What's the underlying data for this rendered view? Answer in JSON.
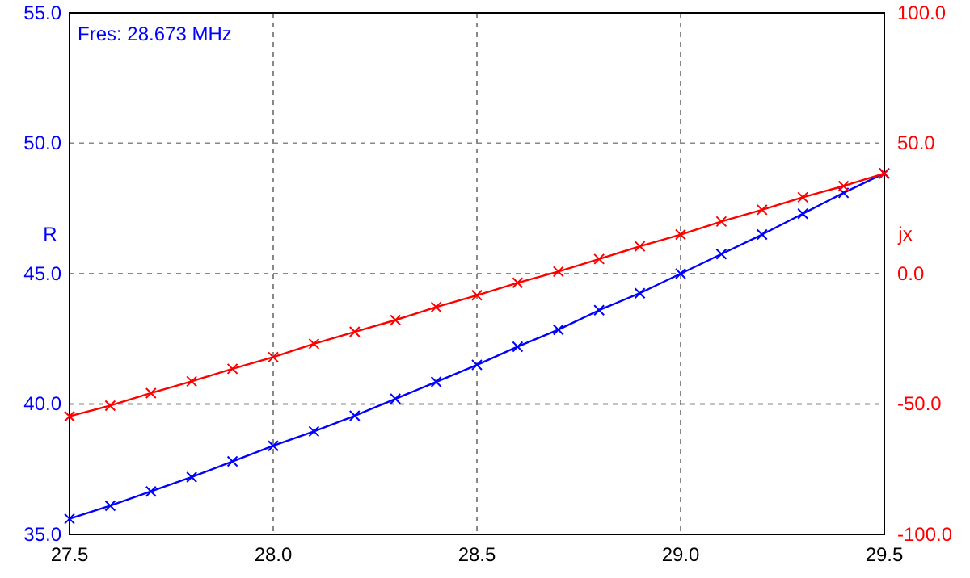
{
  "chart_data": {
    "type": "line",
    "ylabel": "R",
    "y2label": "jx",
    "annotations": [
      "Fres: 28.673 MHz"
    ],
    "x": [
      27.5,
      27.6,
      27.7,
      27.8,
      27.9,
      28.0,
      28.1,
      28.2,
      28.3,
      28.4,
      28.5,
      28.6,
      28.7,
      28.8,
      28.9,
      29.0,
      29.1,
      29.2,
      29.3,
      29.4,
      29.5
    ],
    "series": [
      {
        "color": "#0000ff",
        "values": [
          35.6,
          36.1,
          36.65,
          37.2,
          37.8,
          38.4,
          38.95,
          39.55,
          40.2,
          40.85,
          41.5,
          42.2,
          42.85,
          43.6,
          44.25,
          45.0,
          45.75,
          46.5,
          47.3,
          48.1,
          48.85
        ]
      },
      {
        "color": "#ff0000",
        "axis": "y2",
        "values": [
          -54.7,
          -50.6,
          -45.8,
          -41.3,
          -36.5,
          -32.0,
          -26.9,
          -22.3,
          -17.8,
          -12.8,
          -8.3,
          -3.5,
          0.8,
          5.6,
          10.5,
          15.0,
          20.0,
          24.5,
          29.3,
          33.6,
          38.4
        ]
      }
    ],
    "xlim": [
      27.5,
      29.5
    ],
    "xticks": [
      {
        "value": 27.5,
        "label": "27.5"
      },
      {
        "value": 28.0,
        "label": "28.0"
      },
      {
        "value": 28.5,
        "label": "28.5"
      },
      {
        "value": 29.0,
        "label": "29.0"
      },
      {
        "value": 29.5,
        "label": "29.5"
      }
    ],
    "ylim": [
      35,
      55
    ],
    "yticks": [
      {
        "value": 35,
        "label": "35.0"
      },
      {
        "value": 40,
        "label": "40.0"
      },
      {
        "value": 45,
        "label": "45.0"
      },
      {
        "value": 50,
        "label": "50.0"
      },
      {
        "value": 55,
        "label": "55.0"
      }
    ],
    "y2lim": [
      -100,
      100
    ],
    "y2ticks": [
      {
        "value": -100,
        "label": "-100.0"
      },
      {
        "value": -50,
        "label": "-50.0"
      },
      {
        "value": 0,
        "label": "0.0"
      },
      {
        "value": 50,
        "label": "50.0"
      },
      {
        "value": 100,
        "label": "100.0"
      }
    ],
    "grid": true,
    "marker": "cross",
    "line_style": "solid"
  }
}
